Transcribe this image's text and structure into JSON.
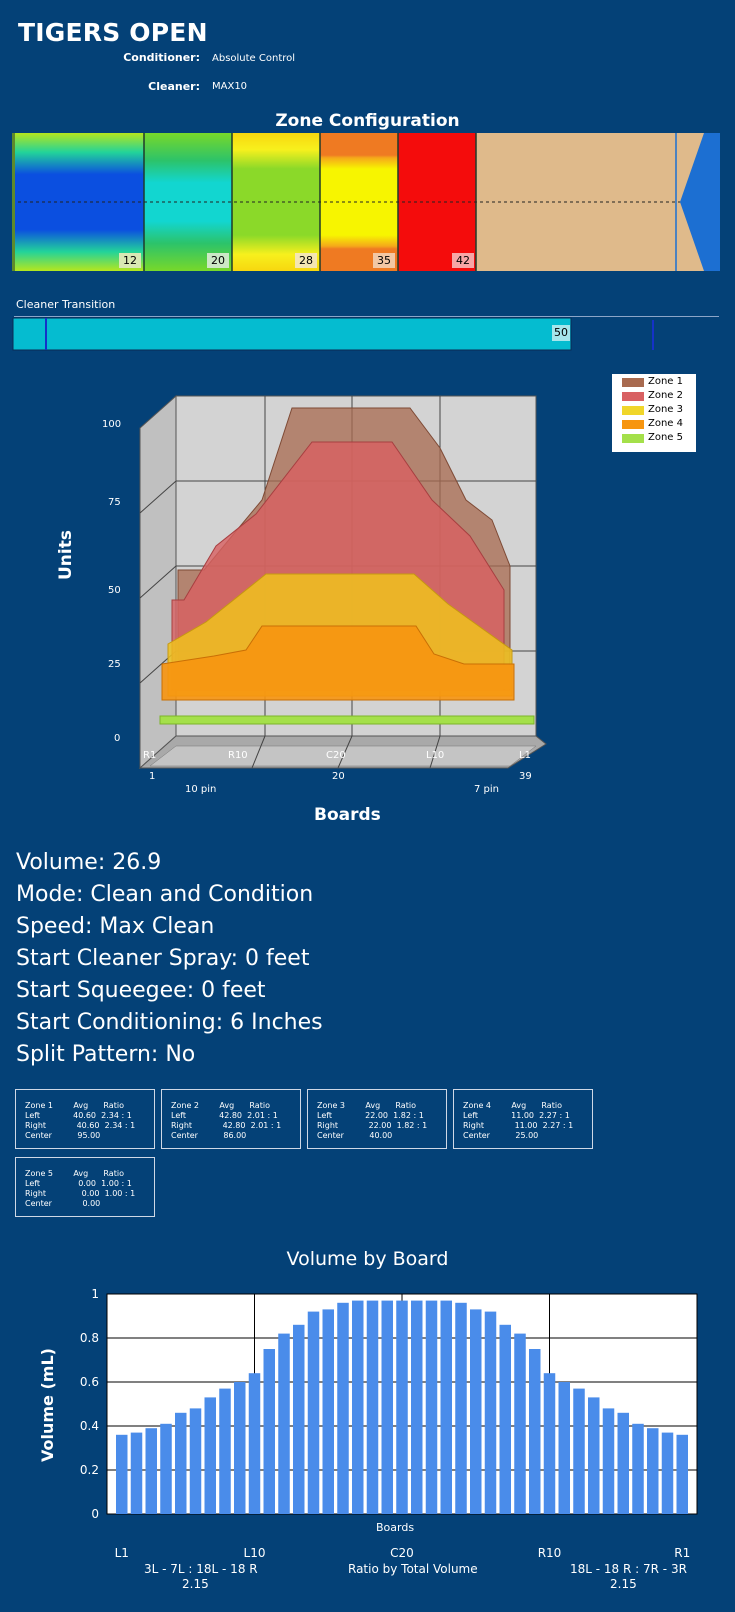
{
  "header": {
    "title": "TIGERS OPEN",
    "conditioner_label": "Conditioner:",
    "conditioner_value": "Absolute Control",
    "cleaner_label": "Cleaner:",
    "cleaner_value": "MAX10"
  },
  "zone_config": {
    "title": "Zone Configuration",
    "markers": [
      "12",
      "20",
      "28",
      "35",
      "42"
    ]
  },
  "cleaner_transition": {
    "label": "Cleaner Transition",
    "value": "50"
  },
  "chart_3d": {
    "type": "area",
    "ylabel": "Units",
    "xlabel": "Boards",
    "y_ticks": [
      "100",
      "75",
      "50",
      "25",
      "0"
    ],
    "x_ticks_top": [
      "R1",
      "R10",
      "C20",
      "L10",
      "L1"
    ],
    "x_ticks_bottom": [
      "1",
      "20",
      "39"
    ],
    "pin_labels": [
      "10 pin",
      "7 pin"
    ],
    "legend": [
      "Zone 1",
      "Zone 2",
      "Zone 3",
      "Zone 4",
      "Zone 5"
    ],
    "colors": [
      "#a86a4f",
      "#d86062",
      "#f0c21d",
      "#f7950f",
      "#a4e04a"
    ]
  },
  "info": {
    "volume": "Volume: 26.9",
    "mode": "Mode: Clean and Condition",
    "speed": "Speed: Max Clean",
    "spray": "Start Cleaner Spray: 0 feet",
    "squeegee": "Start Squeegee: 0 feet",
    "conditioning": "Start Conditioning: 6 Inches",
    "split": "Split Pattern: No"
  },
  "zone_stats": [
    {
      "header": "Zone 1        Avg      Ratio",
      "left": "Left             40.60  2.34 : 1",
      "right": "Right            40.60  2.34 : 1",
      "center": "Center          95.00"
    },
    {
      "header": "Zone 2        Avg      Ratio",
      "left": "Left             42.80  2.01 : 1",
      "right": "Right            42.80  2.01 : 1",
      "center": "Center          86.00"
    },
    {
      "header": "Zone 3        Avg      Ratio",
      "left": "Left             22.00  1.82 : 1",
      "right": "Right            22.00  1.82 : 1",
      "center": "Center          40.00"
    },
    {
      "header": "Zone 4        Avg      Ratio",
      "left": "Left             11.00  2.27 : 1",
      "right": "Right            11.00  2.27 : 1",
      "center": "Center          25.00"
    },
    {
      "header": "Zone 5        Avg      Ratio",
      "left": "Left               0.00  1.00 : 1",
      "right": "Right              0.00  1.00 : 1",
      "center": "Center            0.00"
    }
  ],
  "chart_data": {
    "type": "bar",
    "title": "Volume by Board",
    "xlabel": "Boards",
    "ylabel": "Volume (mL)",
    "ylim": [
      0,
      1
    ],
    "y_ticks": [
      "1",
      "0.8",
      "0.6",
      "0.4",
      "0.2",
      "0"
    ],
    "x_ticks": [
      "L1",
      "L10",
      "C20",
      "R10",
      "R1"
    ],
    "values": [
      0.36,
      0.37,
      0.39,
      0.41,
      0.46,
      0.48,
      0.53,
      0.57,
      0.6,
      0.64,
      0.75,
      0.82,
      0.86,
      0.92,
      0.93,
      0.96,
      0.97,
      0.97,
      0.97,
      0.97,
      0.97,
      0.97,
      0.97,
      0.96,
      0.93,
      0.92,
      0.86,
      0.82,
      0.75,
      0.64,
      0.6,
      0.57,
      0.53,
      0.48,
      0.46,
      0.41,
      0.39,
      0.37,
      0.36
    ],
    "color": "#4a8cea",
    "left_ratio_label": "3L - 7L : 18L - 18 R",
    "left_ratio_value": "2.15",
    "center_label": "Ratio by Total Volume",
    "right_ratio_label": "18L - 18 R : 7R - 3R",
    "right_ratio_value": "2.15"
  }
}
